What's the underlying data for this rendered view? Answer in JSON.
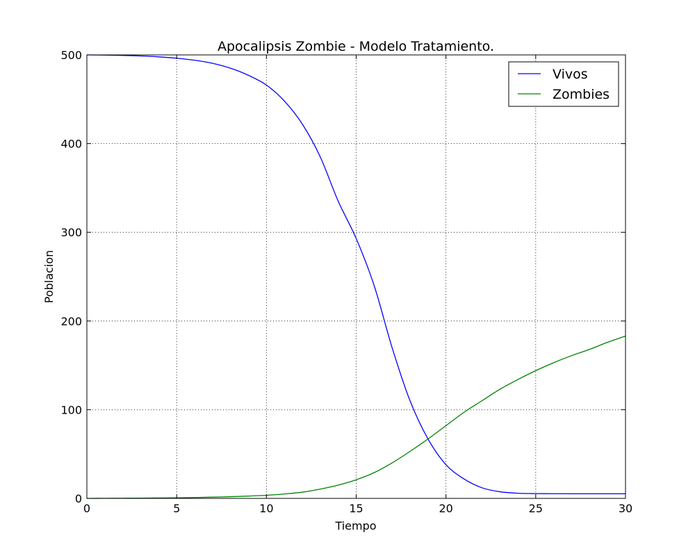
{
  "chart_data": {
    "type": "line",
    "title": "Apocalipsis Zombie - Modelo Tratamiento.",
    "xlabel": "Tiempo",
    "ylabel": "Poblacion",
    "xlim": [
      0,
      30
    ],
    "ylim": [
      0,
      500
    ],
    "x_ticks": [
      "0",
      "5",
      "10",
      "15",
      "20",
      "25",
      "30"
    ],
    "y_ticks": [
      "0",
      "100",
      "200",
      "300",
      "400",
      "500"
    ],
    "grid": true,
    "legend_position": "top-right",
    "x": [
      0,
      1,
      2,
      3,
      4,
      5,
      6,
      7,
      8,
      9,
      10,
      11,
      12,
      13,
      14,
      15,
      16,
      17,
      18,
      19,
      20,
      21,
      22,
      23,
      24,
      25,
      26,
      27,
      28,
      29,
      30
    ],
    "series": [
      {
        "name": "Vivos",
        "color": "#0000ff",
        "values": [
          500,
          499.8,
          499.4,
          498.8,
          497.8,
          496.3,
          494,
          490.5,
          485,
          477,
          466,
          448,
          422,
          385,
          335,
          293,
          240,
          170,
          110,
          67,
          38,
          22,
          12,
          7.5,
          5.8,
          5.4,
          5.3,
          5.2,
          5.2,
          5.2,
          5.2
        ]
      },
      {
        "name": "Zombies",
        "color": "#008000",
        "values": [
          0,
          0.1,
          0.2,
          0.3,
          0.5,
          0.7,
          1,
          1.4,
          1.9,
          2.6,
          3.5,
          5,
          7,
          10.5,
          15,
          21,
          29,
          40,
          53,
          67,
          82,
          97,
          110,
          123,
          134,
          144,
          153,
          161,
          168,
          176,
          183
        ]
      }
    ]
  }
}
